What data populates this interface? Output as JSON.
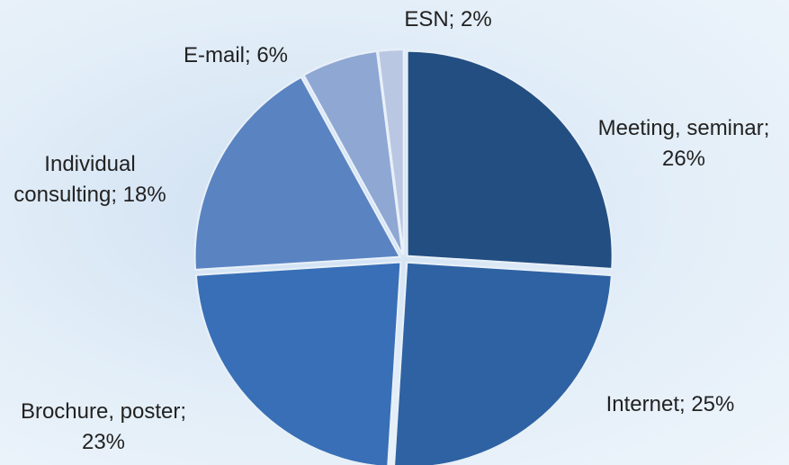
{
  "chart_data": {
    "type": "pie",
    "values": [
      26,
      25,
      23,
      18,
      6,
      2
    ],
    "value_labels": [
      "Meeting, seminar; 26%",
      "Internet; 25%",
      "Brochure, poster; 23%",
      "Individual consulting; 18%",
      "E-mail; 6%",
      "ESN; 2%"
    ],
    "colors": [
      "#234e82",
      "#2e62a3",
      "#386fb6",
      "#5a83c2",
      "#8ea7d3",
      "#b9c7e3"
    ]
  }
}
